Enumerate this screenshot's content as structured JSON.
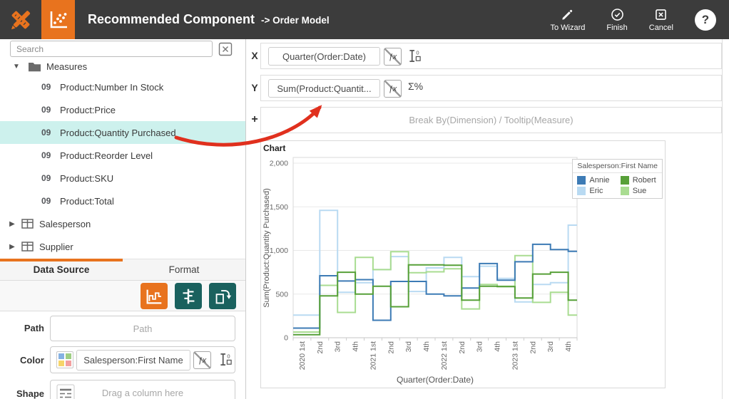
{
  "header": {
    "title": "Recommended Component",
    "subtitle": "-> Order Model",
    "actions": [
      {
        "label": "To Wizard",
        "icon": "pencil-icon"
      },
      {
        "label": "Finish",
        "icon": "check-circle-icon"
      },
      {
        "label": "Cancel",
        "icon": "x-square-icon"
      }
    ],
    "help_label": "?"
  },
  "sidebar": {
    "search": {
      "placeholder": "Search"
    },
    "tree": {
      "folder_label": "Measures",
      "item_icon": "09",
      "items": [
        "Product:Number In Stock",
        "Product:Price",
        "Product:Quantity Purchased",
        "Product:Reorder Level",
        "Product:SKU",
        "Product:Total"
      ],
      "selected_item": "Product:Quantity Purchased",
      "tables": [
        "Salesperson",
        "Supplier"
      ]
    },
    "tabs": {
      "data_source": "Data Source",
      "format": "Format"
    },
    "fields": {
      "path": {
        "label": "Path",
        "placeholder": "Path"
      },
      "color": {
        "label": "Color",
        "value": "Salesperson:First Name"
      },
      "shape": {
        "label": "Shape",
        "placeholder": "Drag a column here"
      }
    }
  },
  "builder": {
    "x_row": {
      "label": "X",
      "value": "Quarter(Order:Date)"
    },
    "y_row": {
      "label": "Y",
      "value": "Sum(Product:Quantit..."
    },
    "break_row": {
      "label": "+",
      "placeholder": "Break By(Dimension) / Tooltip(Measure)"
    }
  },
  "icons": {
    "fx": "ƒx",
    "sigma": "Σ%",
    "sort_zero": "0",
    "caret_down": "▼",
    "caret_right": "▶"
  },
  "annotation": {
    "arrow_color": "#e0301e"
  },
  "chart_data": {
    "type": "line",
    "step": true,
    "title": "Chart",
    "xlabel": "Quarter(Order:Date)",
    "ylabel": "Sum(Product:Quantity Purchased)",
    "ylim": [
      0,
      2000
    ],
    "yticks": [
      0,
      500,
      1000,
      1500,
      2000
    ],
    "grid": true,
    "legend_position": "top-right",
    "legend_title": "Salesperson:First Name",
    "categories": [
      "2020 1st",
      "2nd",
      "3rd",
      "4th",
      "2021 1st",
      "2nd",
      "3rd",
      "4th",
      "2022 1st",
      "2nd",
      "3rd",
      "4th",
      "2023 1st",
      "2nd",
      "3rd",
      "4th"
    ],
    "series": [
      {
        "name": "Annie",
        "color": "#3d7bb5",
        "values": [
          110,
          710,
          650,
          665,
          200,
          645,
          645,
          500,
          480,
          570,
          850,
          660,
          870,
          1070,
          1010,
          990
        ]
      },
      {
        "name": "Robert",
        "color": "#57a038",
        "values": [
          35,
          480,
          750,
          500,
          590,
          355,
          835,
          835,
          830,
          430,
          590,
          585,
          455,
          730,
          750,
          430
        ]
      },
      {
        "name": "Eric",
        "color": "#b9daf2",
        "values": [
          260,
          1460,
          520,
          630,
          780,
          930,
          530,
          800,
          920,
          700,
          820,
          680,
          410,
          610,
          630,
          1290
        ]
      },
      {
        "name": "Sue",
        "color": "#a9dc91",
        "values": [
          65,
          600,
          290,
          920,
          780,
          985,
          745,
          755,
          790,
          330,
          610,
          590,
          940,
          405,
          520,
          260
        ]
      }
    ]
  }
}
